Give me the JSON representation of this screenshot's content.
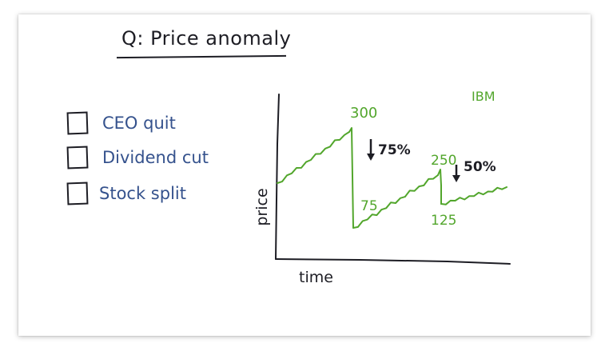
{
  "title": "Q: Price anomaly",
  "options": [
    {
      "label": "CEO quit"
    },
    {
      "label": "Dividend cut"
    },
    {
      "label": "Stock split"
    }
  ],
  "colors": {
    "ink": "#1d1d24",
    "options": "#35528d",
    "series": "#52a62c"
  },
  "chart_data": {
    "type": "line",
    "xlabel": "time",
    "ylabel": "price",
    "series": [
      {
        "name": "IBM",
        "drops": [
          {
            "from": 300,
            "to": 75,
            "change": "75%"
          },
          {
            "from": 250,
            "to": 125,
            "change": "50%"
          }
        ]
      }
    ],
    "annotations": {
      "peak1": "300",
      "trough1": "75",
      "peak2": "250",
      "trough2": "125",
      "drop1": "75%",
      "drop2": "50%"
    }
  }
}
